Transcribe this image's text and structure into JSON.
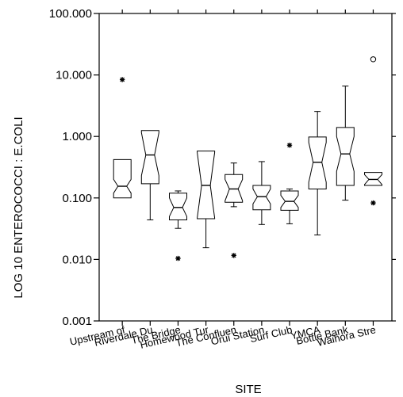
{
  "chart_data": {
    "type": "box",
    "xlabel": "SITE",
    "ylabel": "LOG 10 ENTEROCOCCI : E.COLI",
    "y_scale": "log",
    "ylim": [
      0.001,
      100
    ],
    "y_ticks": [
      {
        "value": 0.001,
        "label": "0.001"
      },
      {
        "value": 0.01,
        "label": "0.010"
      },
      {
        "value": 0.1,
        "label": "0.100"
      },
      {
        "value": 1,
        "label": "1.000"
      },
      {
        "value": 10,
        "label": "10.000"
      },
      {
        "value": 100,
        "label": "100.000"
      }
    ],
    "categories": [
      "Upstream of",
      "Riverdale Du",
      "The Bridge",
      "Homewood Tur",
      "The Confluen",
      "Orui Station",
      "Surf Club",
      "YMCA",
      "Bottle Bank",
      "Waihora Stre"
    ],
    "boxes": [
      {
        "whisker_low": 0.1,
        "q1": 0.1,
        "median": 0.155,
        "q3": 0.42,
        "whisker_high": 0.42,
        "notch_low": 0.12,
        "notch_high": 0.2,
        "outliers": [
          {
            "value": 8.4,
            "marker": "star"
          }
        ]
      },
      {
        "whisker_low": 0.044,
        "q1": 0.17,
        "median": 0.5,
        "q3": 1.25,
        "whisker_high": 1.25,
        "notch_low": 0.23,
        "notch_high": 1.15,
        "outliers": []
      },
      {
        "whisker_low": 0.032,
        "q1": 0.044,
        "median": 0.07,
        "q3": 0.12,
        "whisker_high": 0.13,
        "notch_low": 0.05,
        "notch_high": 0.1,
        "outliers": [
          {
            "value": 0.0104,
            "marker": "star"
          }
        ]
      },
      {
        "whisker_low": 0.0155,
        "q1": 0.046,
        "median": 0.16,
        "q3": 0.58,
        "whisker_high": 0.58,
        "notch_low": 0.047,
        "notch_high": 0.55,
        "outliers": []
      },
      {
        "whisker_low": 0.072,
        "q1": 0.085,
        "median": 0.14,
        "q3": 0.24,
        "whisker_high": 0.37,
        "notch_low": 0.09,
        "notch_high": 0.2,
        "outliers": [
          {
            "value": 0.0116,
            "marker": "star"
          }
        ]
      },
      {
        "whisker_low": 0.037,
        "q1": 0.064,
        "median": 0.105,
        "q3": 0.16,
        "whisker_high": 0.39,
        "notch_low": 0.08,
        "notch_high": 0.14,
        "outliers": []
      },
      {
        "whisker_low": 0.038,
        "q1": 0.063,
        "median": 0.088,
        "q3": 0.13,
        "whisker_high": 0.14,
        "notch_low": 0.07,
        "notch_high": 0.11,
        "outliers": [
          {
            "value": 0.72,
            "marker": "star"
          }
        ]
      },
      {
        "whisker_low": 0.025,
        "q1": 0.14,
        "median": 0.38,
        "q3": 0.98,
        "whisker_high": 2.55,
        "notch_low": 0.18,
        "notch_high": 0.8,
        "outliers": []
      },
      {
        "whisker_low": 0.092,
        "q1": 0.16,
        "median": 0.52,
        "q3": 1.4,
        "whisker_high": 6.6,
        "notch_low": 0.27,
        "notch_high": 1.0,
        "outliers": []
      },
      {
        "whisker_low": 0.16,
        "q1": 0.16,
        "median": 0.2,
        "q3": 0.26,
        "whisker_high": 0.26,
        "notch_low": 0.165,
        "notch_high": 0.24,
        "outliers": [
          {
            "value": 0.083,
            "marker": "star"
          },
          {
            "value": 18,
            "marker": "circle"
          }
        ]
      }
    ]
  }
}
